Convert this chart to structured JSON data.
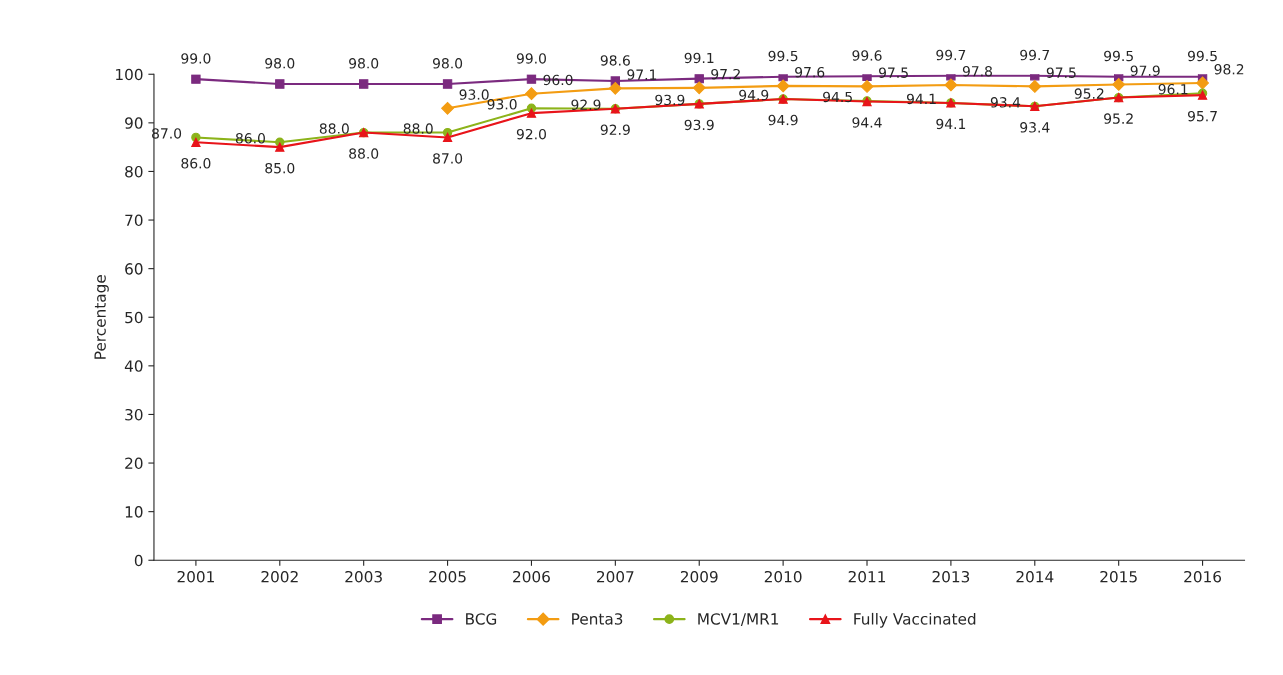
{
  "chart_data": {
    "type": "line",
    "ylabel": "Percentage",
    "categories": [
      "2001",
      "2002",
      "2003",
      "2005",
      "2006",
      "2007",
      "2009",
      "2010",
      "2011",
      "2013",
      "2014",
      "2015",
      "2016"
    ],
    "series": [
      {
        "name": "BCG",
        "color": "#7b2a7f",
        "marker": "square",
        "values": [
          99.0,
          98.0,
          98.0,
          98.0,
          99.0,
          98.6,
          99.1,
          99.5,
          99.6,
          99.7,
          99.7,
          99.5,
          99.5
        ],
        "value_labels": [
          "99.0",
          "98.0",
          "98.0",
          "98.0",
          "99.0",
          "98.6",
          "99.1",
          "99.5",
          "99.6",
          "99.7",
          "99.7",
          "99.5",
          "99.5"
        ]
      },
      {
        "name": "Penta3",
        "color": "#f39c12",
        "marker": "diamond",
        "values": [
          null,
          null,
          null,
          93.0,
          96.0,
          97.1,
          97.2,
          97.6,
          97.5,
          97.8,
          97.5,
          97.9,
          98.2
        ],
        "value_labels": [
          null,
          null,
          null,
          "93.0",
          "96.0",
          "97.1",
          "97.2",
          "97.6",
          "97.5",
          "97.8",
          "97.5",
          "97.9",
          "98.2"
        ]
      },
      {
        "name": "MCV1/MR1",
        "color": "#8cb31a",
        "marker": "circle",
        "values": [
          87.0,
          86.0,
          88.0,
          88.0,
          93.0,
          92.9,
          93.9,
          94.9,
          94.5,
          94.1,
          93.4,
          95.2,
          96.1
        ],
        "value_labels": [
          "87.0",
          "86.0",
          "88.0",
          "88.0",
          "93.0",
          "92.9",
          "93.9",
          "94.9",
          "94.5",
          "94.1",
          "93.4",
          "95.2",
          "96.1"
        ]
      },
      {
        "name": "Fully Vaccinated",
        "color": "#e8141a",
        "marker": "triangle",
        "values": [
          86.0,
          85.0,
          88.0,
          87.0,
          92.0,
          92.9,
          93.9,
          94.9,
          94.4,
          94.1,
          93.4,
          95.2,
          95.7
        ],
        "value_labels": [
          "86.0",
          "85.0",
          "88.0",
          "87.0",
          "92.0",
          "92.9",
          "93.9",
          "94.9",
          "94.4",
          "94.1",
          "93.4",
          "95.2",
          "95.7"
        ]
      }
    ],
    "ylim": [
      0,
      100
    ],
    "yticks": [
      0,
      10,
      20,
      30,
      40,
      50,
      60,
      70,
      80,
      90,
      100
    ],
    "grid": false,
    "legend": "bottom",
    "line_style": "solid"
  }
}
